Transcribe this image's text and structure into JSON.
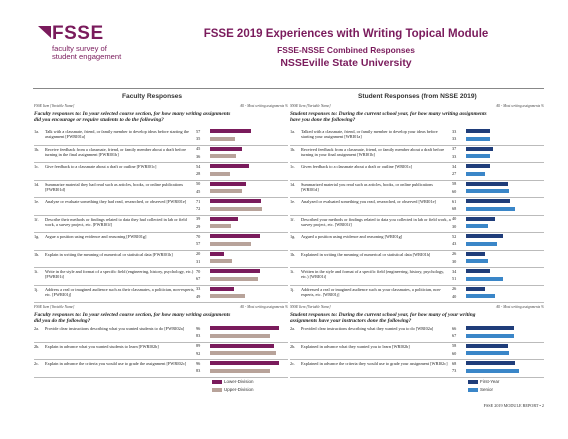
{
  "logo": {
    "name": "FSSE",
    "line1": "faculty survey of",
    "line2": "student engagement"
  },
  "header": {
    "title": "FSSE 2019 Experiences with Writing Topical Module",
    "subtitle": "FSSE-NSSE Combined Responses",
    "institution": "NSSEville State University"
  },
  "faculty": {
    "heading": "Faculty Responses",
    "col_left": "FSSE Item [Variable Name]",
    "col_right": "All - Most writing assignments %",
    "q1": "Faculty responses to: In your selected course section, for how many writing assignments did you encourage or require students to do the following?",
    "q2": "Faculty responses to: In your selected course section, for how many writing assignments did you do the following?"
  },
  "student": {
    "heading": "Student Responses (from NSSE 2019)",
    "col_left": "NSSE Item [Variable Name]",
    "col_right": "All - Most writing assignments %",
    "q1": "Student responses to: During the current school year, for how many writing assignments have you done the following?",
    "q2": "Student responses to: During the current school year, for how many of your writing assignments have your instructors done the following?"
  },
  "items1": [
    {
      "code": "1a.",
      "f_text": "Talk with a classmate, friend, or family member to develop ideas before starting the assignment [FWRI01a]",
      "s_text": "Talked with a classmate, friend, or family member to develop your ideas before starting your assignment [WRI01a]",
      "f": [
        57,
        35
      ],
      "s": [
        33,
        33
      ]
    },
    {
      "code": "1b.",
      "f_text": "Receive feedback from a classmate, friend, or family member about a draft before turning in the final assignment [FWRI01b]",
      "s_text": "Received feedback from a classmate, friend, or family member about a draft before turning in your final assignment [WRI01b]",
      "f": [
        45,
        36
      ],
      "s": [
        37,
        33
      ]
    },
    {
      "code": "1c.",
      "f_text": "Give feedback to a classmate about a draft or outline [FWRI01c]",
      "s_text": "Given feedback to a classmate about a draft or outline [WRI01c]",
      "f": [
        54,
        28
      ],
      "s": [
        34,
        27
      ]
    },
    {
      "code": "1d.",
      "f_text": "Summarize material they had read such as articles, books, or online publications [FWRI01d]",
      "s_text": "Summarized material you read such as articles, books, or online publications [WRI01d]",
      "f": [
        50,
        45
      ],
      "s": [
        58,
        60
      ]
    },
    {
      "code": "1e.",
      "f_text": "Analyze or evaluate something they had read, researched, or observed [FWRI01e]",
      "s_text": "Analyzed or evaluated something you read, researched, or observed [WRI01e]",
      "f": [
        71,
        72
      ],
      "s": [
        61,
        68
      ]
    },
    {
      "code": "1f.",
      "f_text": "Describe their methods or findings related to data they had collected in lab or field work, a survey project, etc. [FWRI01f]",
      "s_text": "Described your methods or findings related to data you collected in lab or field work, a survey project, etc. [WRI01f]",
      "f": [
        39,
        29
      ],
      "s": [
        40,
        30
      ]
    },
    {
      "code": "1g.",
      "f_text": "Argue a position using evidence and reasoning [FWRI01g]",
      "s_text": "Argued a position using evidence and reasoning [WRI01g]",
      "f": [
        70,
        57
      ],
      "s": [
        52,
        43
      ]
    },
    {
      "code": "1h.",
      "f_text": "Explain in writing the meaning of numerical or statistical data [FWRI01h]",
      "s_text": "Explained in writing the meaning of numerical or statistical data [WRI01h]",
      "f": [
        20,
        31
      ],
      "s": [
        26,
        30
      ]
    },
    {
      "code": "1i.",
      "f_text": "Write in the style and format of a specific field (engineering, history, psychology, etc.) [FWRI01i]",
      "s_text": "Written in the style and format of a specific field (engineering, history, psychology, etc.) [WRI01i]",
      "f": [
        70,
        67
      ],
      "s": [
        34,
        51
      ]
    },
    {
      "code": "1j.",
      "f_text": "Address a real or imagined audience such as their classmates, a politician, non-experts, etc. [FWRI01j]",
      "s_text": "Addressed a real or imagined audience such as your classmates, a politician, non-experts, etc. [WRI01j]",
      "f": [
        33,
        49
      ],
      "s": [
        26,
        40
      ]
    }
  ],
  "items2": [
    {
      "code": "2a.",
      "f_text": "Provide clear instructions describing what you wanted students to do [FWRI02a]",
      "s_text": "Provided clear instructions describing what they wanted you to do [WRI02a]",
      "f": [
        96,
        83
      ],
      "s": [
        66,
        67
      ]
    },
    {
      "code": "2b.",
      "f_text": "Explain in advance what you wanted students to learn [FWRI02b]",
      "s_text": "Explained in advance what they wanted you to learn [WRI02b]",
      "f": [
        89,
        92
      ],
      "s": [
        58,
        60
      ]
    },
    {
      "code": "2c.",
      "f_text": "Explain in advance the criteria you would use to grade the assignment [FWRI02c]",
      "s_text": "Explained in advance the criteria they would use to grade your assignment [WRI02c]",
      "f": [
        96,
        83
      ],
      "s": [
        68,
        73
      ]
    }
  ],
  "legend_f": [
    "Lower-Division",
    "Upper-Division"
  ],
  "legend_s": [
    "First-Year",
    "Senior"
  ],
  "colors": {
    "f1": "#7a1b5c",
    "f2": "#b8a39a",
    "s1": "#1f3d7a",
    "s2": "#3a86c8"
  },
  "footer": "FSSE 2019 MODULE REPORT  •  2"
}
